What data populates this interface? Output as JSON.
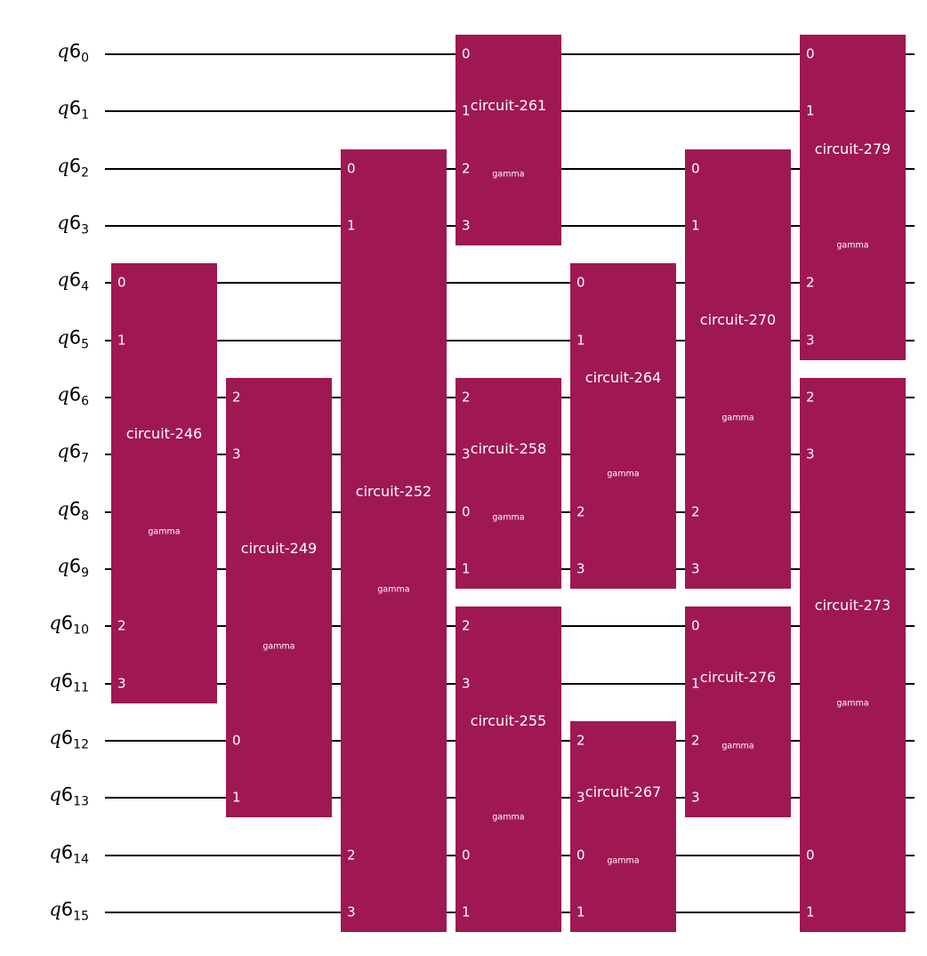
{
  "circuit": {
    "register": "q6",
    "qubits": [
      "0",
      "1",
      "2",
      "3",
      "4",
      "5",
      "6",
      "7",
      "8",
      "9",
      "10",
      "11",
      "12",
      "13",
      "14",
      "15"
    ],
    "gates": [
      {
        "name": "circuit-246",
        "param": "gamma",
        "column": 0,
        "wires": [
          {
            "qubit": 4,
            "port": "0"
          },
          {
            "qubit": 5,
            "port": "1"
          },
          {
            "qubit": 10,
            "port": "2"
          },
          {
            "qubit": 11,
            "port": "3"
          }
        ]
      },
      {
        "name": "circuit-249",
        "param": "gamma",
        "column": 1,
        "wires": [
          {
            "qubit": 6,
            "port": "2"
          },
          {
            "qubit": 7,
            "port": "3"
          },
          {
            "qubit": 12,
            "port": "0"
          },
          {
            "qubit": 13,
            "port": "1"
          }
        ]
      },
      {
        "name": "circuit-252",
        "param": "gamma",
        "column": 2,
        "wires": [
          {
            "qubit": 2,
            "port": "0"
          },
          {
            "qubit": 3,
            "port": "1"
          },
          {
            "qubit": 14,
            "port": "2"
          },
          {
            "qubit": 15,
            "port": "3"
          }
        ]
      },
      {
        "name": "circuit-261",
        "param": "gamma",
        "column": 3,
        "wires": [
          {
            "qubit": 0,
            "port": "0"
          },
          {
            "qubit": 1,
            "port": "1"
          },
          {
            "qubit": 2,
            "port": "2"
          },
          {
            "qubit": 3,
            "port": "3"
          }
        ]
      },
      {
        "name": "circuit-258",
        "param": "gamma",
        "column": 3,
        "wires": [
          {
            "qubit": 6,
            "port": "2"
          },
          {
            "qubit": 7,
            "port": "3"
          },
          {
            "qubit": 8,
            "port": "0"
          },
          {
            "qubit": 9,
            "port": "1"
          }
        ]
      },
      {
        "name": "circuit-255",
        "param": "gamma",
        "column": 3,
        "wires": [
          {
            "qubit": 10,
            "port": "2"
          },
          {
            "qubit": 11,
            "port": "3"
          },
          {
            "qubit": 14,
            "port": "0"
          },
          {
            "qubit": 15,
            "port": "1"
          }
        ]
      },
      {
        "name": "circuit-264",
        "param": "gamma",
        "column": 4,
        "wires": [
          {
            "qubit": 4,
            "port": "0"
          },
          {
            "qubit": 5,
            "port": "1"
          },
          {
            "qubit": 8,
            "port": "2"
          },
          {
            "qubit": 9,
            "port": "3"
          }
        ]
      },
      {
        "name": "circuit-267",
        "param": "gamma",
        "column": 4,
        "wires": [
          {
            "qubit": 12,
            "port": "2"
          },
          {
            "qubit": 13,
            "port": "3"
          },
          {
            "qubit": 14,
            "port": "0"
          },
          {
            "qubit": 15,
            "port": "1"
          }
        ]
      },
      {
        "name": "circuit-270",
        "param": "gamma",
        "column": 5,
        "wires": [
          {
            "qubit": 2,
            "port": "0"
          },
          {
            "qubit": 3,
            "port": "1"
          },
          {
            "qubit": 8,
            "port": "2"
          },
          {
            "qubit": 9,
            "port": "3"
          }
        ]
      },
      {
        "name": "circuit-276",
        "param": "gamma",
        "column": 5,
        "wires": [
          {
            "qubit": 10,
            "port": "0"
          },
          {
            "qubit": 11,
            "port": "1"
          },
          {
            "qubit": 12,
            "port": "2"
          },
          {
            "qubit": 13,
            "port": "3"
          }
        ]
      },
      {
        "name": "circuit-279",
        "param": "gamma",
        "column": 6,
        "wires": [
          {
            "qubit": 0,
            "port": "0"
          },
          {
            "qubit": 1,
            "port": "1"
          },
          {
            "qubit": 4,
            "port": "2"
          },
          {
            "qubit": 5,
            "port": "3"
          }
        ]
      },
      {
        "name": "circuit-273",
        "param": "gamma",
        "column": 6,
        "wires": [
          {
            "qubit": 6,
            "port": "2"
          },
          {
            "qubit": 7,
            "port": "3"
          },
          {
            "qubit": 14,
            "port": "0"
          },
          {
            "qubit": 15,
            "port": "1"
          }
        ]
      }
    ]
  },
  "colors": {
    "gate_fill": "#9f1853",
    "gate_text": "#ffffff",
    "wire": "#000000",
    "label": "#000000"
  }
}
